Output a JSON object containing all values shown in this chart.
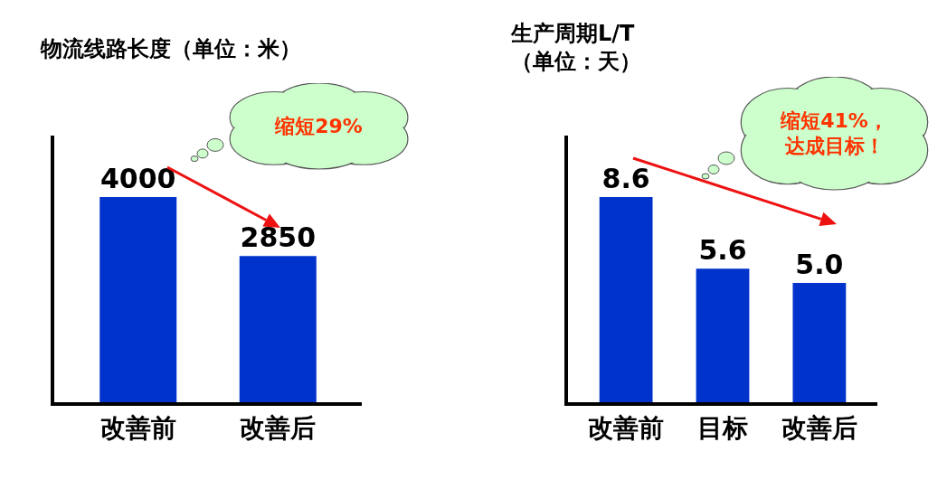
{
  "chart_data": [
    {
      "type": "bar",
      "title": "物流线路长度（单位：米）",
      "categories": [
        "改善前",
        "改善后"
      ],
      "values": [
        4000,
        2850
      ],
      "value_labels": [
        "4000",
        "2850"
      ],
      "color": "#0033cc",
      "annotations": [
        "缩短29%"
      ]
    },
    {
      "type": "bar",
      "title": "生产周期L/T\n（单位：天）",
      "categories": [
        "改善前",
        "目标",
        "改善后"
      ],
      "values": [
        8.6,
        5.6,
        5.0
      ],
      "value_labels": [
        "8.6",
        "5.6",
        "5.0"
      ],
      "color": "#0033cc",
      "annotations": [
        "缩短41%，达成目标！"
      ]
    }
  ]
}
